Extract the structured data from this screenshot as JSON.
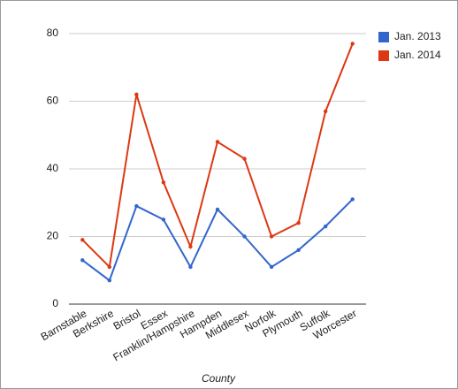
{
  "chart_data": {
    "type": "line",
    "x_label": "County",
    "categories": [
      "Barnstable",
      "Berkshire",
      "Bristol",
      "Essex",
      "Franklin/Hampshire",
      "Hampden",
      "Middlesex",
      "Norfolk",
      "Plymouth",
      "Suffolk",
      "Worcester"
    ],
    "series": [
      {
        "name": "Jan. 2013",
        "color": "#3366cc",
        "values": [
          13,
          7,
          29,
          25,
          11,
          28,
          20,
          11,
          16,
          23,
          31
        ]
      },
      {
        "name": "Jan. 2014",
        "color": "#dc3912",
        "values": [
          19,
          11,
          62,
          36,
          17,
          48,
          43,
          20,
          24,
          57,
          77
        ]
      }
    ],
    "ylim": [
      0,
      80
    ],
    "yticks": [
      0,
      20,
      40,
      60,
      80
    ],
    "grid": true,
    "legend": "top-right"
  }
}
